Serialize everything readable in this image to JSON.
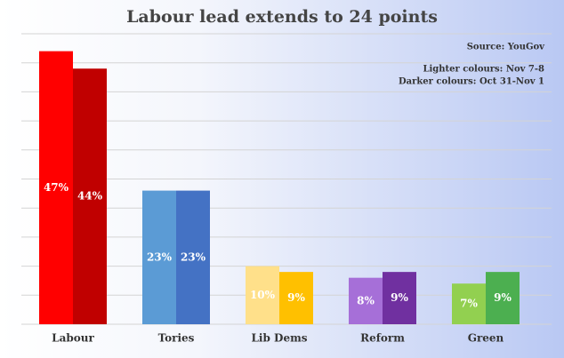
{
  "chart_data": {
    "type": "bar",
    "title": "Labour lead extends to 24 points",
    "source": "Source: YouGov",
    "categories": [
      "Labour",
      "Tories",
      "Lib Dems",
      "Reform",
      "Green"
    ],
    "series": [
      {
        "name": "Lighter colours: Nov 7-8",
        "colors": [
          "#ff0000",
          "#5b9bd5",
          "#ffe08a",
          "#a66fd8",
          "#92d050"
        ],
        "values": [
          47,
          23,
          10,
          8,
          7
        ],
        "value_labels": [
          "47%",
          "23%",
          "10%",
          "8%",
          "7%"
        ]
      },
      {
        "name": "Darker colours: Oct 31-Nov 1",
        "colors": [
          "#c00000",
          "#4472c4",
          "#ffc000",
          "#7030a0",
          "#4caf50"
        ],
        "values": [
          44,
          23,
          9,
          9,
          9
        ],
        "value_labels": [
          "44%",
          "23%",
          "9%",
          "9%",
          "9%"
        ]
      }
    ],
    "ylim": [
      0,
      50
    ],
    "yticks": [
      0,
      5,
      10,
      15,
      20,
      25,
      30,
      35,
      40,
      45,
      50
    ],
    "grid": true
  }
}
